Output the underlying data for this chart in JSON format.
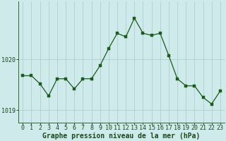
{
  "x": [
    0,
    1,
    2,
    3,
    4,
    5,
    6,
    7,
    8,
    9,
    10,
    11,
    12,
    13,
    14,
    15,
    16,
    17,
    18,
    19,
    20,
    21,
    22,
    23
  ],
  "y": [
    1019.68,
    1019.68,
    1019.52,
    1019.28,
    1019.62,
    1019.62,
    1019.42,
    1019.62,
    1019.62,
    1019.88,
    1020.22,
    1020.52,
    1020.45,
    1020.82,
    1020.52,
    1020.48,
    1020.52,
    1020.08,
    1019.62,
    1019.48,
    1019.48,
    1019.25,
    1019.12,
    1019.38
  ],
  "line_color": "#1a5c1a",
  "marker_color": "#1a5c1a",
  "bg_color": "#ceeaea",
  "grid_color": "#aecece",
  "xlabel": "Graphe pression niveau de la mer (hPa)",
  "ylim_min": 1018.75,
  "ylim_max": 1021.15,
  "ytick_values": [
    1019,
    1020
  ],
  "tick_fontsize": 6.0,
  "xlabel_fontsize": 7.0
}
